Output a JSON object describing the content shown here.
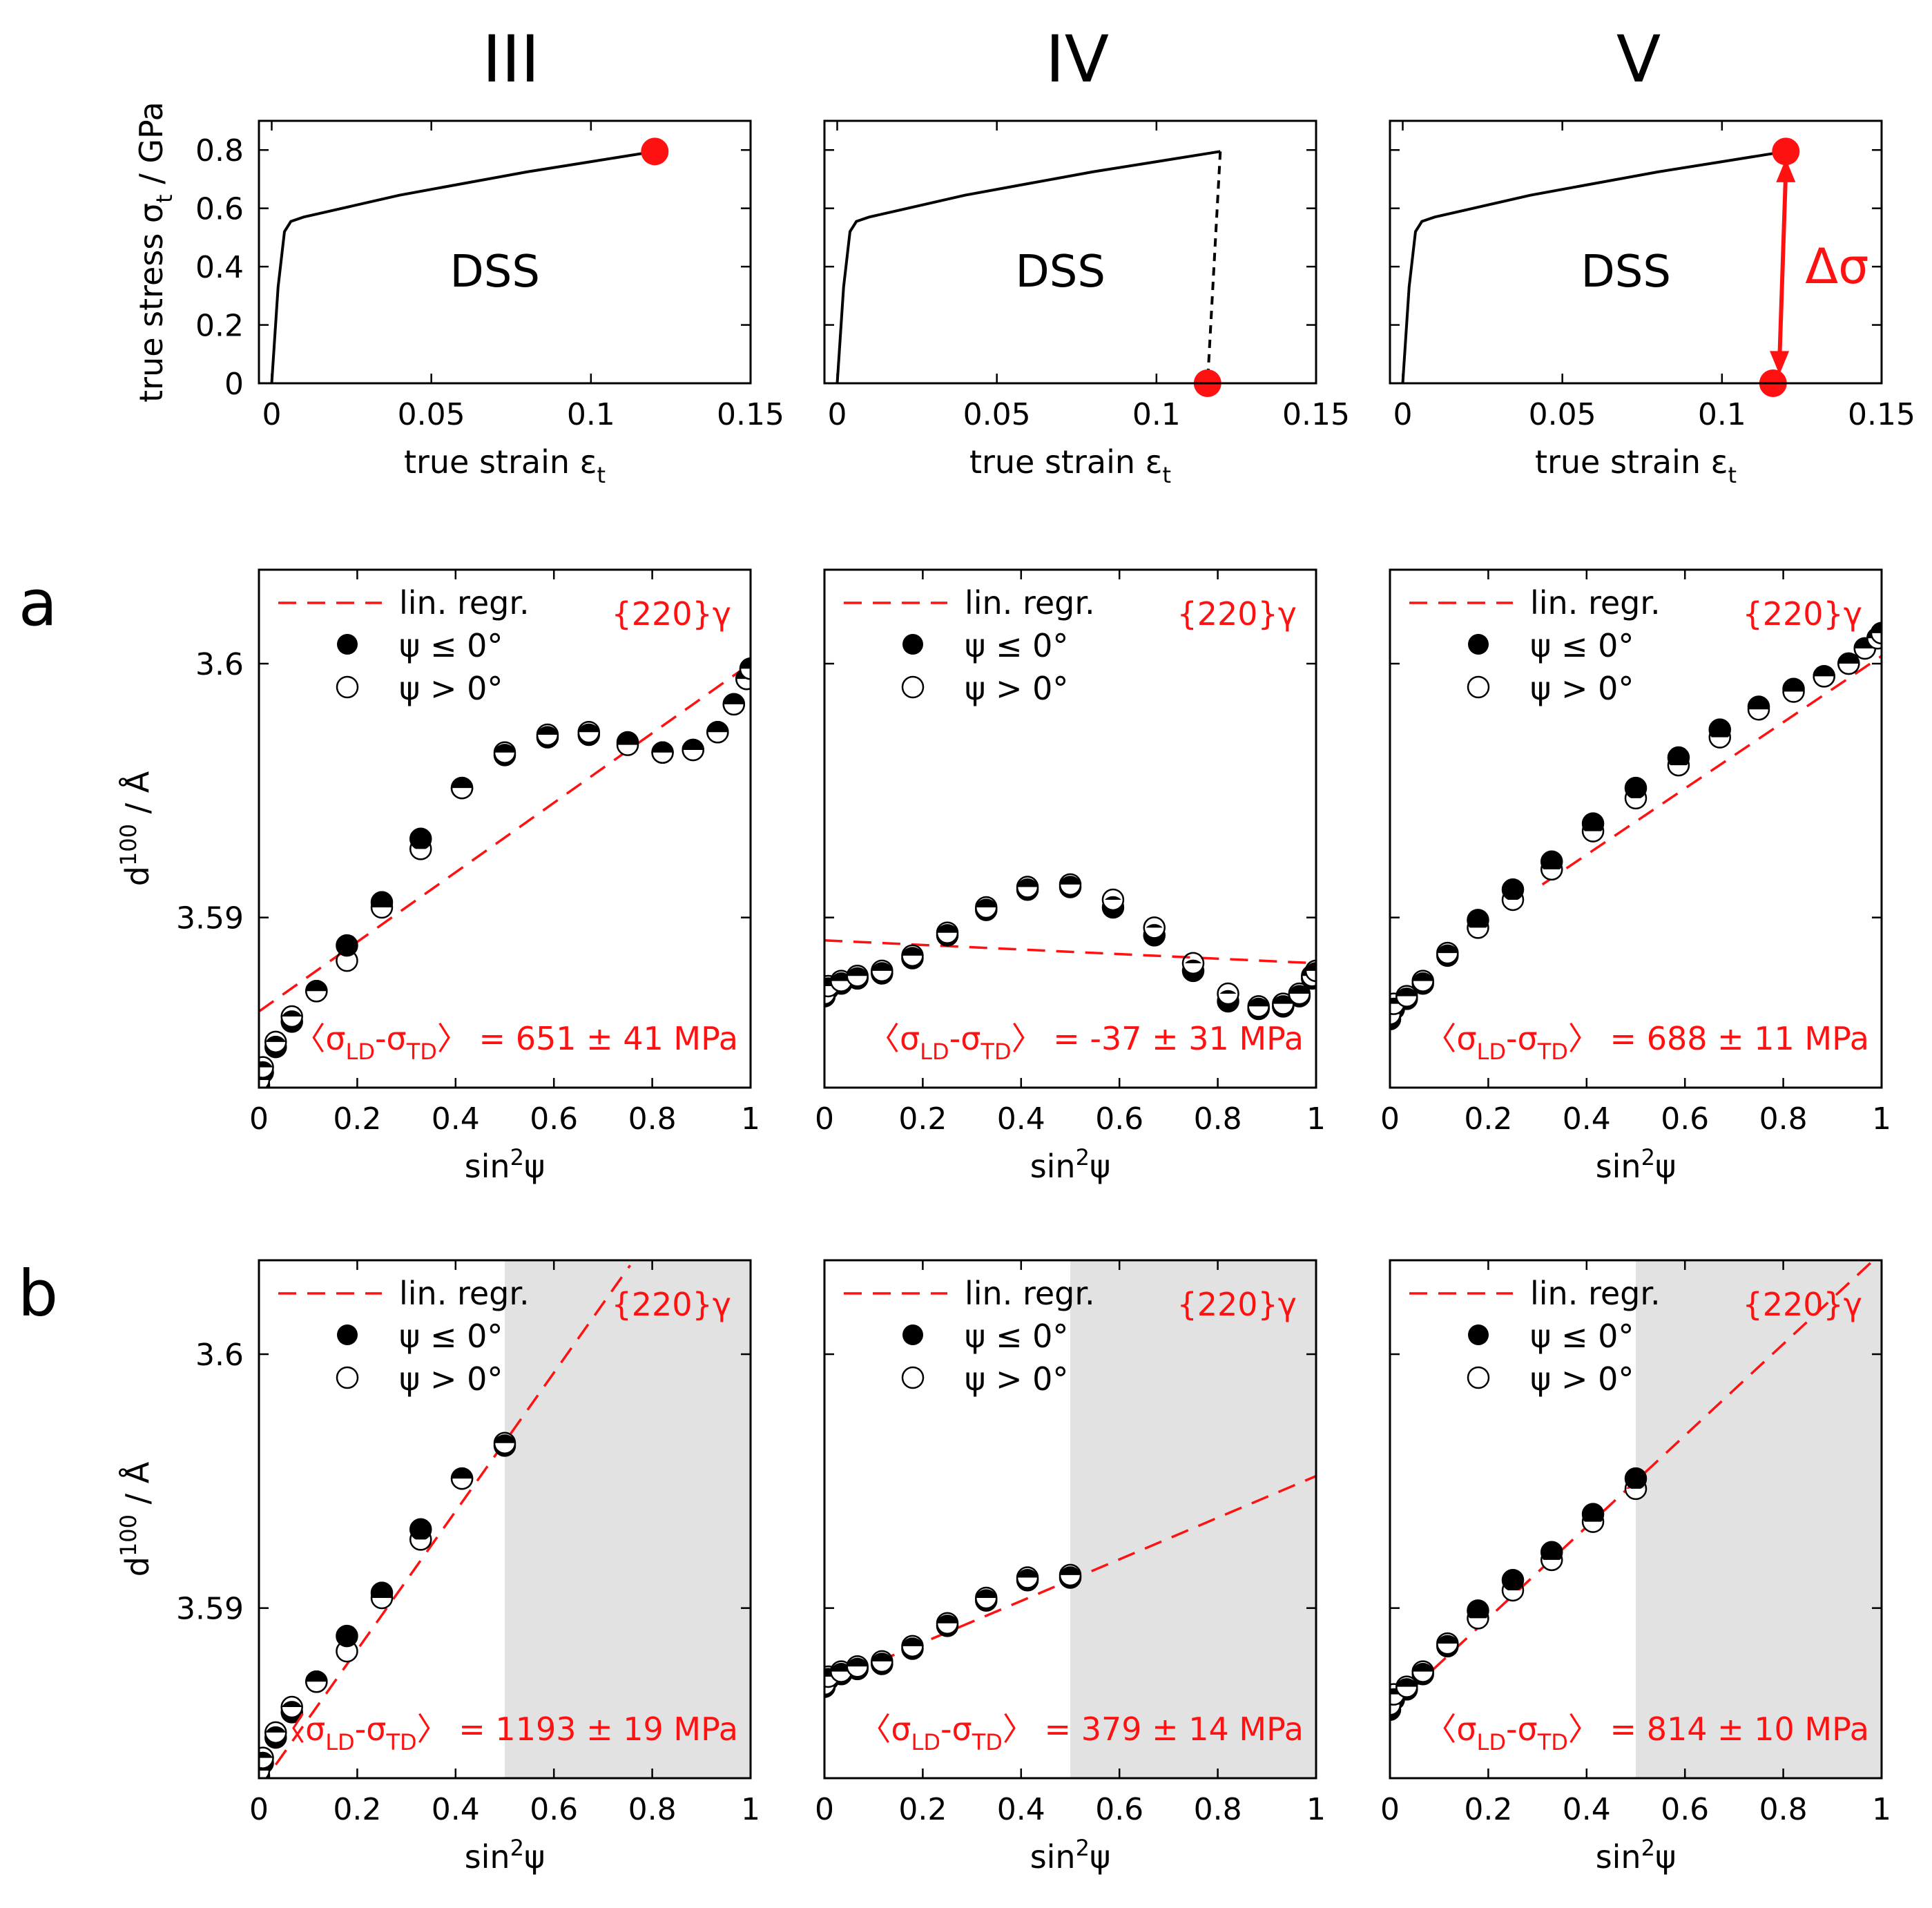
{
  "colors": {
    "red": "#ff1111",
    "shade": "#e2e2e2",
    "black": "#000000"
  },
  "column_titles": [
    "III",
    "IV",
    "V"
  ],
  "row_labels": [
    "a",
    "b"
  ],
  "chart_data": [
    {
      "id": "III-top",
      "type": "line",
      "col": 0,
      "row": "top",
      "label": "DSS",
      "xlabel": "true strain ε",
      "xlabel_sub": "t",
      "ylabel": "true stress σ",
      "ylabel_sub": "t",
      "ylabel_tail": " / GPa",
      "xlim": [
        -0.004,
        0.15
      ],
      "ylim": [
        0,
        0.9
      ],
      "xticks": [
        0,
        0.05,
        0.1,
        0.15
      ],
      "xtick_labels": [
        "0",
        "0.05",
        "0.1",
        "0.15"
      ],
      "yticks": [
        0,
        0.2,
        0.4,
        0.6,
        0.8
      ],
      "ytick_labels": [
        "0",
        "0.2",
        "0.4",
        "0.6",
        "0.8"
      ],
      "curve": {
        "x": [
          0,
          0.002,
          0.004,
          0.006,
          0.01,
          0.02,
          0.04,
          0.06,
          0.08,
          0.1,
          0.12
        ],
        "y": [
          0,
          0.33,
          0.52,
          0.555,
          0.57,
          0.595,
          0.645,
          0.685,
          0.725,
          0.76,
          0.795
        ]
      },
      "dashed": null,
      "markers": [
        {
          "x": 0.12,
          "y": 0.795
        }
      ],
      "arrow": null
    },
    {
      "id": "IV-top",
      "type": "line",
      "col": 1,
      "row": "top",
      "label": "DSS",
      "xlabel": "true strain ε",
      "xlabel_sub": "t",
      "xlim": [
        -0.004,
        0.15
      ],
      "ylim": [
        0,
        0.9
      ],
      "xticks": [
        0,
        0.05,
        0.1,
        0.15
      ],
      "xtick_labels": [
        "0",
        "0.05",
        "0.1",
        "0.15"
      ],
      "yticks": [
        0,
        0.2,
        0.4,
        0.6,
        0.8
      ],
      "ytick_labels": [
        "",
        "",
        "",
        "",
        ""
      ],
      "curve": {
        "x": [
          0,
          0.002,
          0.004,
          0.006,
          0.01,
          0.02,
          0.04,
          0.06,
          0.08,
          0.1,
          0.12
        ],
        "y": [
          0,
          0.33,
          0.52,
          0.555,
          0.57,
          0.595,
          0.645,
          0.685,
          0.725,
          0.76,
          0.795
        ]
      },
      "dashed": {
        "x": [
          0.12,
          0.116
        ],
        "y": [
          0.795,
          0.0
        ]
      },
      "markers": [
        {
          "x": 0.116,
          "y": 0.0
        }
      ],
      "arrow": null
    },
    {
      "id": "V-top",
      "type": "line",
      "col": 2,
      "row": "top",
      "label": "DSS",
      "xlabel": "true strain ε",
      "xlabel_sub": "t",
      "xlim": [
        -0.004,
        0.15
      ],
      "ylim": [
        0,
        0.9
      ],
      "xticks": [
        0,
        0.05,
        0.1,
        0.15
      ],
      "xtick_labels": [
        "0",
        "0.05",
        "0.1",
        "0.15"
      ],
      "yticks": [
        0,
        0.2,
        0.4,
        0.6,
        0.8
      ],
      "ytick_labels": [
        "",
        "",
        "",
        "",
        ""
      ],
      "curve": {
        "x": [
          0,
          0.002,
          0.004,
          0.006,
          0.01,
          0.02,
          0.04,
          0.06,
          0.08,
          0.1,
          0.12
        ],
        "y": [
          0,
          0.33,
          0.52,
          0.555,
          0.57,
          0.595,
          0.645,
          0.685,
          0.725,
          0.76,
          0.795
        ]
      },
      "dashed": null,
      "markers": [
        {
          "x": 0.12,
          "y": 0.795
        },
        {
          "x": 0.116,
          "y": 0.0
        }
      ],
      "arrow": {
        "x1": 0.118,
        "y1": 0.03,
        "x2": 0.12,
        "y2": 0.77,
        "label": "Δσ"
      }
    },
    {
      "id": "III-a",
      "type": "scatter",
      "col": 0,
      "row": "a",
      "xlabel": "sin",
      "xlabel_sup": "2",
      "xlabel_tail": "ψ",
      "ylabel": "d",
      "ylabel_sup": "100",
      "ylabel_tail": " / Å",
      "xlim": [
        0,
        1
      ],
      "ylim": [
        3.5833,
        3.6037
      ],
      "xticks": [
        0,
        0.2,
        0.4,
        0.6,
        0.8,
        1
      ],
      "xtick_labels": [
        "0",
        "0.2",
        "0.4",
        "0.6",
        "0.8",
        "1"
      ],
      "yticks": [
        3.59,
        3.6
      ],
      "ytick_labels": [
        "3.59",
        "3.6"
      ],
      "legend": [
        "lin. regr.",
        "ψ ≤ 0°",
        "ψ > 0°"
      ],
      "phase": "{220}γ",
      "fit": {
        "x": [
          0,
          1
        ],
        "y": [
          3.5863,
          3.6
        ]
      },
      "shade_from": null,
      "x": [
        0,
        0.0078,
        0.0341,
        0.067,
        0.117,
        0.179,
        0.25,
        0.329,
        0.413,
        0.5,
        0.587,
        0.671,
        0.75,
        0.821,
        0.883,
        0.933,
        0.966,
        0.992,
        1.0
      ],
      "y_neg": [
        3.5834,
        3.5839,
        3.5849,
        3.5859,
        3.5871,
        3.5889,
        3.5906,
        3.5931,
        3.5951,
        3.5964,
        3.5971,
        3.5972,
        3.5969,
        3.5965,
        3.5966,
        3.5973,
        3.5984,
        3.5994,
        3.5998
      ],
      "y_pos": [
        3.5836,
        3.5841,
        3.5851,
        3.5861,
        3.5871,
        3.5883,
        3.5904,
        3.5927,
        3.5951,
        3.5965,
        3.5972,
        3.5973,
        3.5968,
        3.5965,
        3.5966,
        3.5973,
        3.5984,
        3.5994,
        3.5998
      ],
      "result": "〈σ",
      "result_sub1": "LD",
      "result_mid": "-σ",
      "result_sub2": "TD",
      "result_tail": "〉 = 651 ± 41 MPa"
    },
    {
      "id": "IV-a",
      "type": "scatter",
      "col": 1,
      "row": "a",
      "xlabel": "sin",
      "xlabel_sup": "2",
      "xlabel_tail": "ψ",
      "xlim": [
        0,
        1
      ],
      "ylim": [
        3.5833,
        3.6037
      ],
      "xticks": [
        0,
        0.2,
        0.4,
        0.6,
        0.8,
        1
      ],
      "xtick_labels": [
        "0",
        "0.2",
        "0.4",
        "0.6",
        "0.8",
        "1"
      ],
      "yticks": [
        3.59,
        3.6
      ],
      "ytick_labels": [
        "",
        ""
      ],
      "legend": [
        "lin. regr.",
        "ψ ≤ 0°",
        "ψ > 0°"
      ],
      "phase": "{220}γ",
      "fit": {
        "x": [
          0,
          1
        ],
        "y": [
          3.5891,
          3.5882
        ]
      },
      "shade_from": null,
      "x": [
        0,
        0.0078,
        0.0341,
        0.067,
        0.117,
        0.179,
        0.25,
        0.329,
        0.413,
        0.5,
        0.587,
        0.671,
        0.75,
        0.821,
        0.883,
        0.933,
        0.966,
        0.992,
        1.0
      ],
      "y_neg": [
        3.5869,
        3.5872,
        3.5874,
        3.5876,
        3.5878,
        3.5884,
        3.5893,
        3.5903,
        3.5911,
        3.5912,
        3.5904,
        3.5893,
        3.5879,
        3.5867,
        3.5864,
        3.5865,
        3.5869,
        3.5876,
        3.5878
      ],
      "y_pos": [
        3.587,
        3.5873,
        3.5875,
        3.5877,
        3.5879,
        3.5885,
        3.5894,
        3.5904,
        3.5912,
        3.5913,
        3.5907,
        3.5896,
        3.5882,
        3.587,
        3.5865,
        3.5866,
        3.587,
        3.5877,
        3.5879
      ],
      "result": "〈σ",
      "result_sub1": "LD",
      "result_mid": "-σ",
      "result_sub2": "TD",
      "result_tail": "〉 = -37 ± 31 MPa"
    },
    {
      "id": "V-a",
      "type": "scatter",
      "col": 2,
      "row": "a",
      "xlabel": "sin",
      "xlabel_sup": "2",
      "xlabel_tail": "ψ",
      "xlim": [
        0,
        1
      ],
      "ylim": [
        3.5833,
        3.6037
      ],
      "xticks": [
        0,
        0.2,
        0.4,
        0.6,
        0.8,
        1
      ],
      "xtick_labels": [
        "0",
        "0.2",
        "0.4",
        "0.6",
        "0.8",
        "1"
      ],
      "yticks": [
        3.59,
        3.6
      ],
      "ytick_labels": [
        "",
        ""
      ],
      "legend": [
        "lin. regr.",
        "ψ ≤ 0°",
        "ψ > 0°"
      ],
      "phase": "{220}γ",
      "fit": {
        "x": [
          0.31,
          1
        ],
        "y": [
          3.5913,
          3.6003
        ]
      },
      "shade_from": null,
      "x": [
        0,
        0.0078,
        0.0341,
        0.067,
        0.117,
        0.179,
        0.25,
        0.329,
        0.413,
        0.5,
        0.587,
        0.671,
        0.75,
        0.821,
        0.883,
        0.933,
        0.966,
        0.992,
        1.0
      ],
      "y_neg": [
        3.586,
        3.5864,
        3.5868,
        3.5874,
        3.5885,
        3.5899,
        3.5911,
        3.5922,
        3.5937,
        3.5951,
        3.5963,
        3.5974,
        3.5983,
        3.599,
        3.5995,
        3.6,
        3.6006,
        3.601,
        3.6012
      ],
      "y_pos": [
        3.5862,
        3.5866,
        3.5869,
        3.5875,
        3.5886,
        3.5896,
        3.5907,
        3.5919,
        3.5934,
        3.5947,
        3.596,
        3.5971,
        3.5982,
        3.5989,
        3.5995,
        3.6,
        3.6006,
        3.601,
        3.6012
      ],
      "result": "〈σ",
      "result_sub1": "LD",
      "result_mid": "-σ",
      "result_sub2": "TD",
      "result_tail": "〉 = 688 ± 11 MPa"
    },
    {
      "id": "III-b",
      "type": "scatter",
      "col": 0,
      "row": "b",
      "xlabel": "sin",
      "xlabel_sup": "2",
      "xlabel_tail": "ψ",
      "ylabel": "d",
      "ylabel_sup": "100",
      "ylabel_tail": " / Å",
      "xlim": [
        0,
        1
      ],
      "ylim": [
        3.5833,
        3.6037
      ],
      "xticks": [
        0,
        0.2,
        0.4,
        0.6,
        0.8,
        1
      ],
      "xtick_labels": [
        "0",
        "0.2",
        "0.4",
        "0.6",
        "0.8",
        "1"
      ],
      "yticks": [
        3.59,
        3.6
      ],
      "ytick_labels": [
        "3.59",
        "3.6"
      ],
      "legend": [
        "lin. regr.",
        "ψ ≤ 0°",
        "ψ > 0°"
      ],
      "phase": "{220}γ",
      "fit": {
        "x": [
          0,
          0.755
        ],
        "y": [
          3.5829,
          3.6035
        ]
      },
      "shade_from": 0.5,
      "x": [
        0,
        0.0078,
        0.0341,
        0.067,
        0.117,
        0.179,
        0.25,
        0.329,
        0.413,
        0.5
      ],
      "y_neg": [
        3.5834,
        3.5839,
        3.5849,
        3.5859,
        3.5871,
        3.5889,
        3.5906,
        3.5931,
        3.5951,
        3.5964
      ],
      "y_pos": [
        3.5836,
        3.5841,
        3.5851,
        3.5861,
        3.5871,
        3.5883,
        3.5904,
        3.5927,
        3.5951,
        3.5965
      ],
      "result": "〈σ",
      "result_sub1": "LD",
      "result_mid": "-σ",
      "result_sub2": "TD",
      "result_tail": "〉 = 1193 ± 19 MPa"
    },
    {
      "id": "IV-b",
      "type": "scatter",
      "col": 1,
      "row": "b",
      "xlabel": "sin",
      "xlabel_sup": "2",
      "xlabel_tail": "ψ",
      "xlim": [
        0,
        1
      ],
      "ylim": [
        3.5833,
        3.6037
      ],
      "xticks": [
        0,
        0.2,
        0.4,
        0.6,
        0.8,
        1
      ],
      "xtick_labels": [
        "0",
        "0.2",
        "0.4",
        "0.6",
        "0.8",
        "1"
      ],
      "yticks": [
        3.59,
        3.6
      ],
      "ytick_labels": [
        "",
        ""
      ],
      "legend": [
        "lin. regr.",
        "ψ ≤ 0°",
        "ψ > 0°"
      ],
      "phase": "{220}γ",
      "fit": {
        "x": [
          0,
          1
        ],
        "y": [
          3.587,
          3.5952
        ]
      },
      "shade_from": 0.5,
      "x": [
        0,
        0.0078,
        0.0341,
        0.067,
        0.117,
        0.179,
        0.25,
        0.329,
        0.413,
        0.5
      ],
      "y_neg": [
        3.5869,
        3.5872,
        3.5874,
        3.5876,
        3.5878,
        3.5884,
        3.5893,
        3.5903,
        3.5911,
        3.5912
      ],
      "y_pos": [
        3.587,
        3.5873,
        3.5875,
        3.5877,
        3.5879,
        3.5885,
        3.5894,
        3.5904,
        3.5912,
        3.5913
      ],
      "result": "〈σ",
      "result_sub1": "LD",
      "result_mid": "-σ",
      "result_sub2": "TD",
      "result_tail": "〉 = 379 ± 14 MPa"
    },
    {
      "id": "V-b",
      "type": "scatter",
      "col": 2,
      "row": "b",
      "xlabel": "sin",
      "xlabel_sup": "2",
      "xlabel_tail": "ψ",
      "xlim": [
        0,
        1
      ],
      "ylim": [
        3.5833,
        3.6037
      ],
      "xticks": [
        0,
        0.2,
        0.4,
        0.6,
        0.8,
        1
      ],
      "xtick_labels": [
        "0",
        "0.2",
        "0.4",
        "0.6",
        "0.8",
        "1"
      ],
      "yticks": [
        3.59,
        3.6
      ],
      "ytick_labels": [
        "",
        ""
      ],
      "legend": [
        "lin. regr.",
        "ψ ≤ 0°",
        "ψ > 0°"
      ],
      "phase": "{220}γ",
      "fit": {
        "x": [
          0,
          1
        ],
        "y": [
          3.586,
          3.604
        ]
      },
      "shade_from": 0.5,
      "x": [
        0,
        0.0078,
        0.0341,
        0.067,
        0.117,
        0.179,
        0.25,
        0.329,
        0.413,
        0.5
      ],
      "y_neg": [
        3.586,
        3.5864,
        3.5868,
        3.5874,
        3.5885,
        3.5899,
        3.5911,
        3.5922,
        3.5937,
        3.5951
      ],
      "y_pos": [
        3.5862,
        3.5866,
        3.5869,
        3.5875,
        3.5886,
        3.5896,
        3.5907,
        3.5919,
        3.5934,
        3.5947
      ],
      "result": "〈σ",
      "result_sub1": "LD",
      "result_mid": "-σ",
      "result_sub2": "TD",
      "result_tail": "〉 = 814 ± 10 MPa"
    }
  ]
}
